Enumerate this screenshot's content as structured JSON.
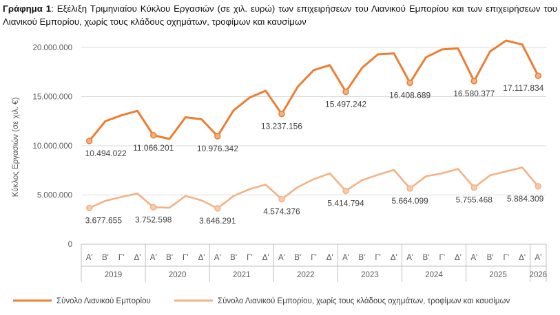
{
  "caption": {
    "prefix": "Γράφημα 1",
    "text": ": Εξέλιξη Τριμηνιαίου Κύκλου Εργασιών (σε χιλ. ευρώ) των επιχειρήσεων του Λιανικού Εμπορίου και των επιχειρήσεων του Λιανικού Εμπορίου, χωρίς τους κλάδους οχημάτων, τροφίμων και καυσίμων"
  },
  "colors": {
    "series1": "#ED7D31",
    "series2": "#F4B183",
    "grid": "#D9D9D9",
    "axis": "#BFBFBF",
    "text": "#595959"
  },
  "chart_data": {
    "type": "line",
    "ylabel": "Κύκλος Εργασιών (σε χιλ. €)",
    "ylim": [
      0,
      20000000
    ],
    "yticks": [
      {
        "value": 0,
        "label": "0"
      },
      {
        "value": 5000000,
        "label": "5.000.000"
      },
      {
        "value": 10000000,
        "label": "10.000.000"
      },
      {
        "value": 15000000,
        "label": "15.000.000"
      },
      {
        "value": 20000000,
        "label": "20.000.000"
      }
    ],
    "grid": true,
    "legend_position": "bottom",
    "categories": [
      "Α'",
      "Β'",
      "Γ'",
      "Δ'",
      "Α'",
      "Β'",
      "Γ'",
      "Δ'",
      "Α'",
      "Β'",
      "Γ'",
      "Δ'",
      "Α'",
      "Β'",
      "Γ'",
      "Δ'",
      "Α'",
      "Β'",
      "Γ'",
      "Δ'",
      "Α'",
      "Β'",
      "Γ'",
      "Δ'",
      "Α'",
      "Β'",
      "Γ'",
      "Δ'",
      "Α'"
    ],
    "year_groups": [
      {
        "label": "2019",
        "count": 4
      },
      {
        "label": "2020",
        "count": 4
      },
      {
        "label": "2021",
        "count": 4
      },
      {
        "label": "2022",
        "count": 4
      },
      {
        "label": "2023",
        "count": 4
      },
      {
        "label": "2024",
        "count": 4
      },
      {
        "label": "2025",
        "count": 4
      },
      {
        "label": "2026",
        "count": 1
      }
    ],
    "series": [
      {
        "name": "Σύνολο Λιανικού Εμπορίου",
        "values": [
          10494022,
          12500000,
          13100000,
          13550000,
          11066201,
          10700000,
          12900000,
          12700000,
          10976342,
          13600000,
          14900000,
          15600000,
          13237156,
          16000000,
          17700000,
          18200000,
          15497242,
          17900000,
          19300000,
          19400000,
          16408689,
          19000000,
          19800000,
          19900000,
          16580377,
          19600000,
          20700000,
          20300000,
          17117834
        ],
        "labels": [
          {
            "index": 0,
            "text": "10.494.022"
          },
          {
            "index": 4,
            "text": "11.066.201"
          },
          {
            "index": 8,
            "text": "10.976.342"
          },
          {
            "index": 12,
            "text": "13.237.156"
          },
          {
            "index": 16,
            "text": "15.497.242"
          },
          {
            "index": 20,
            "text": "16.408.689"
          },
          {
            "index": 24,
            "text": "16.580.377"
          },
          {
            "index": 28,
            "text": "17.117.834"
          }
        ]
      },
      {
        "name": "Σύνολο Λιανικού Εμπορίου, χωρίς τους κλάδους οχημάτων, τροφίμων και καυσίμων",
        "values": [
          3677655,
          4400000,
          4800000,
          5150000,
          3752598,
          3700000,
          4900000,
          4450000,
          3646291,
          4900000,
          5600000,
          6050000,
          4574376,
          5800000,
          6600000,
          7200000,
          5414794,
          6500000,
          7050000,
          7550000,
          5664099,
          6900000,
          7200000,
          7650000,
          5755468,
          7000000,
          7400000,
          7800000,
          5884309
        ],
        "labels": [
          {
            "index": 0,
            "text": "3.677.655"
          },
          {
            "index": 4,
            "text": "3.752.598"
          },
          {
            "index": 8,
            "text": "3.646.291"
          },
          {
            "index": 12,
            "text": "4.574.376"
          },
          {
            "index": 16,
            "text": "5.414.794"
          },
          {
            "index": 20,
            "text": "5.664.099"
          },
          {
            "index": 24,
            "text": "5.755.468"
          },
          {
            "index": 28,
            "text": "5.884.309"
          }
        ]
      }
    ]
  }
}
